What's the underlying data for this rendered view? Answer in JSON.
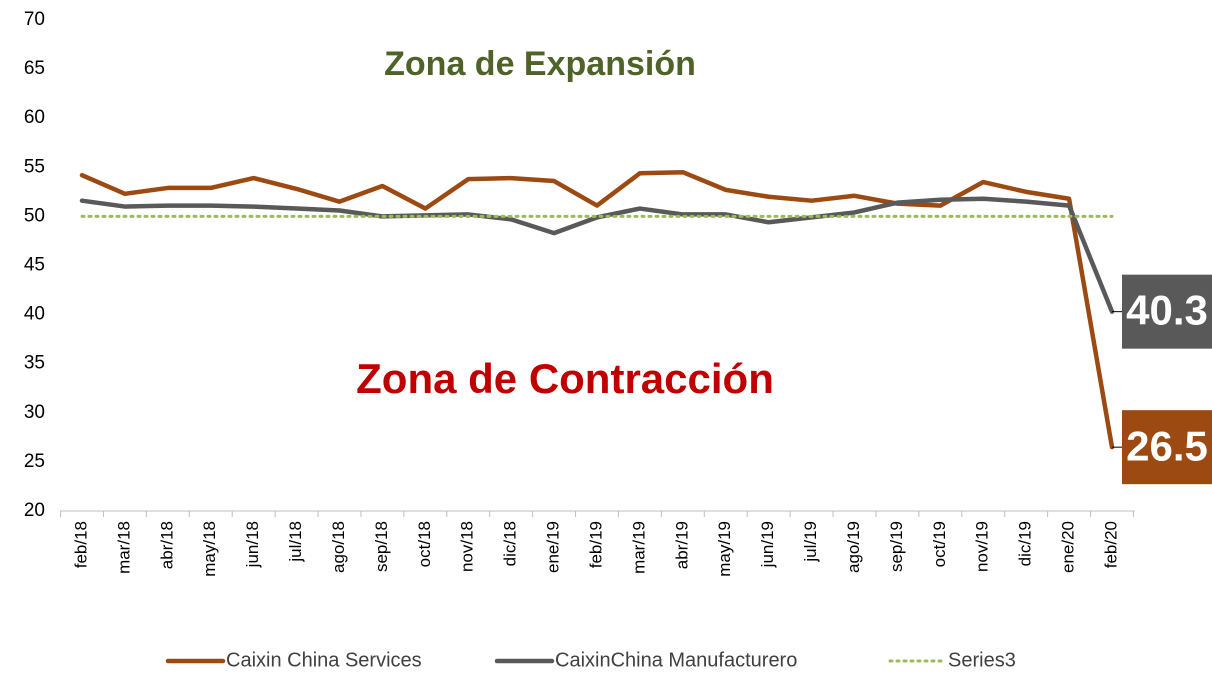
{
  "chart_data": {
    "type": "line",
    "categories": [
      "feb/18",
      "mar/18",
      "abr/18",
      "may/18",
      "jun/18",
      "jul/18",
      "ago/18",
      "sep/18",
      "oct/18",
      "nov/18",
      "dic/18",
      "ene/19",
      "feb/19",
      "mar/19",
      "abr/19",
      "may/19",
      "jun/19",
      "jul/19",
      "ago/19",
      "sep/19",
      "oct/19",
      "nov/19",
      "dic/19",
      "ene/20",
      "feb/20"
    ],
    "series": [
      {
        "name": "Caixin China Services",
        "color": "#9c4a12",
        "line_style": "solid",
        "values": [
          54.2,
          52.3,
          52.9,
          52.9,
          53.9,
          52.8,
          51.5,
          53.1,
          50.8,
          53.8,
          53.9,
          53.6,
          51.1,
          54.4,
          54.5,
          52.7,
          52.0,
          51.6,
          52.1,
          51.3,
          51.1,
          53.5,
          52.5,
          51.8,
          26.5
        ]
      },
      {
        "name": "CaixinChina Manufacturero",
        "color": "#595959",
        "line_style": "solid",
        "values": [
          51.6,
          51.0,
          51.1,
          51.1,
          51.0,
          50.8,
          50.6,
          50.0,
          50.1,
          50.2,
          49.7,
          48.3,
          49.9,
          50.8,
          50.2,
          50.2,
          49.4,
          49.9,
          50.4,
          51.4,
          51.7,
          51.8,
          51.5,
          51.1,
          40.3
        ]
      },
      {
        "name": "Series3",
        "color": "#9bbb59",
        "line_style": "dotted",
        "values": [
          50,
          50,
          50,
          50,
          50,
          50,
          50,
          50,
          50,
          50,
          50,
          50,
          50,
          50,
          50,
          50,
          50,
          50,
          50,
          50,
          50,
          50,
          50,
          50,
          50
        ]
      }
    ],
    "annotations": [
      {
        "text": "Zona de Expansión",
        "color": "#4f6228"
      },
      {
        "text": "Zona de Contracción",
        "color": "#c00000"
      }
    ],
    "ylim": [
      20,
      70
    ],
    "yticks": [
      20,
      25,
      30,
      35,
      40,
      45,
      50,
      55,
      60,
      65,
      70
    ],
    "grid": false
  }
}
